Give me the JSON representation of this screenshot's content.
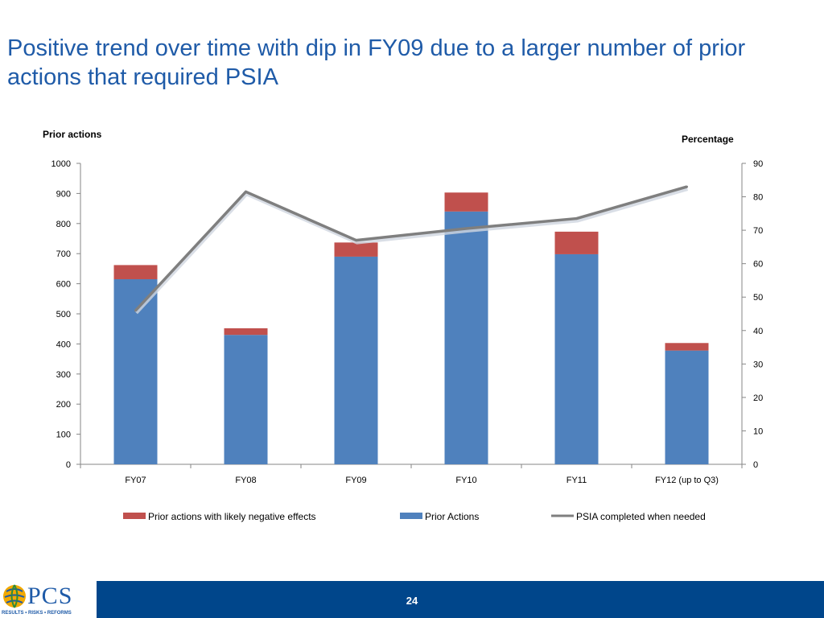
{
  "title": "Positive trend over time with dip in FY09 due to a larger number of prior actions that required PSIA",
  "footer": {
    "page_number": "24",
    "logo_text": "PCS",
    "logo_tagline": "RESULTS • RISKS • REFORMS"
  },
  "colors": {
    "prior_actions": "#4f81bd",
    "negative_effects": "#c0504d",
    "psia_line": "#7f7f7f",
    "axis": "#868686",
    "title": "#1f5ba8",
    "footer_bg": "#00468b"
  },
  "chart_data": {
    "type": "bar",
    "stacked": true,
    "categories": [
      "FY07",
      "FY08",
      "FY09",
      "FY10",
      "FY11",
      "FY12 (up to Q3)"
    ],
    "series": [
      {
        "name": "Prior Actions",
        "axis": "left",
        "values": [
          615,
          430,
          690,
          840,
          698,
          378
        ]
      },
      {
        "name": "Prior actions with likely negative effects",
        "axis": "left",
        "values": [
          47,
          22,
          47,
          63,
          75,
          25
        ]
      },
      {
        "name": "PSIA completed when needed",
        "type": "line",
        "axis": "right",
        "values": [
          46,
          81.5,
          67,
          70.5,
          73.5,
          83
        ]
      }
    ],
    "ylabel_left": "Prior actions",
    "ylabel_right": "Percentage",
    "ylim_left": [
      0,
      1000
    ],
    "ylim_right": [
      0,
      90
    ],
    "yticks_left": [
      "0",
      "100",
      "200",
      "300",
      "400",
      "500",
      "600",
      "700",
      "800",
      "900",
      "1000"
    ],
    "yticks_right": [
      "0",
      "10",
      "20",
      "30",
      "40",
      "50",
      "60",
      "70",
      "80",
      "90"
    ],
    "legend": [
      {
        "label": "Prior actions with likely negative effects",
        "kind": "box",
        "series": "Prior actions with likely negative effects"
      },
      {
        "label": "Prior Actions",
        "kind": "box",
        "series": "Prior Actions"
      },
      {
        "label": "PSIA completed when needed",
        "kind": "line",
        "series": "PSIA completed when needed"
      }
    ],
    "legend_position": "bottom",
    "grid": false
  }
}
